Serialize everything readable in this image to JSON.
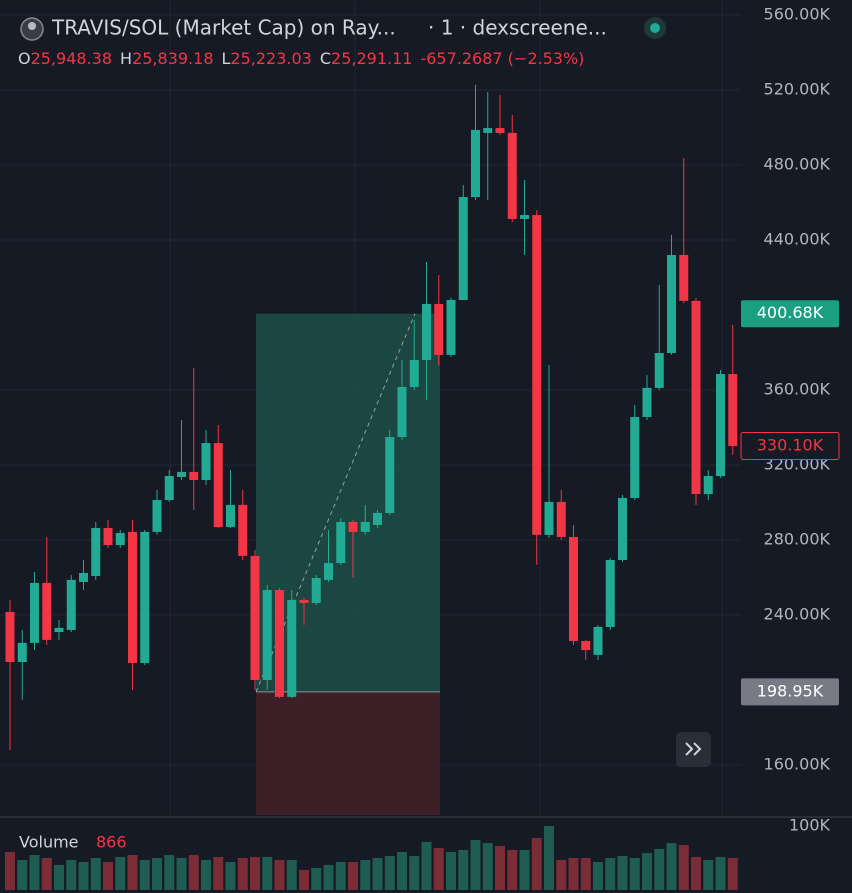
{
  "chart_data": {
    "type": "candlestick",
    "title": "TRAVIS/SOL (Market Cap) on Ray...",
    "subtitle": "· 1 · dexscreene...",
    "ohlc_header": [
      {
        "label": "O",
        "value": "25,948.38"
      },
      {
        "label": "H",
        "value": "25,839.18"
      },
      {
        "label": "L",
        "value": "25,223.03"
      },
      {
        "label": "C",
        "value": "25,291.11"
      }
    ],
    "change": "-657.2687 (−2.53%)",
    "up_color": "#22ab94",
    "down_color": "#f23645",
    "ylim": [
      133.3,
      568
    ],
    "yticks": [
      {
        "value": 160,
        "label": "160.00K"
      },
      {
        "value": 240,
        "label": "240.00K"
      },
      {
        "value": 280,
        "label": "280.00K"
      },
      {
        "value": 320,
        "label": "320.00K"
      },
      {
        "value": 360,
        "label": "360.00K"
      },
      {
        "value": 440,
        "label": "440.00K"
      },
      {
        "value": 480,
        "label": "480.00K"
      },
      {
        "value": 520,
        "label": "520.00K"
      },
      {
        "value": 560,
        "label": "560.00K"
      }
    ],
    "grid": true,
    "open": [
      241.6,
      214.9,
      225.1,
      257.1,
      230.9,
      232,
      257.6,
      260.8,
      286.4,
      277.3,
      284.3,
      214.4,
      284.3,
      301.3,
      313.6,
      316.3,
      312,
      331.7,
      286.9,
      298.7,
      271.5,
      205.3,
      253.3,
      196.3,
      248,
      246.4,
      258.7,
      267.7,
      289.6,
      284.3,
      288,
      294.4,
      334.9,
      361.6,
      376,
      405.9,
      378.7,
      408,
      462.9,
      497.1,
      499.7,
      497.1,
      451.2,
      453.3,
      282.7,
      300.3,
      281.6,
      226.1,
      218.7,
      233.6,
      269.3,
      302.4,
      345.6,
      361.1,
      379.7,
      432,
      407.5,
      304.5,
      314.1,
      368.5
    ],
    "high": [
      248,
      232,
      262.9,
      281.6,
      237.3,
      261.3,
      269.3,
      289.6,
      290.7,
      285.3,
      290.7,
      285.3,
      306.7,
      317.3,
      344,
      371.7,
      338.7,
      341.3,
      317.3,
      306.7,
      274.7,
      256,
      254.4,
      253.3,
      249.1,
      261.3,
      285.3,
      291.7,
      290.7,
      298.7,
      296,
      338.7,
      376,
      397.3,
      428.3,
      421.3,
      409.1,
      469.3,
      522.7,
      518.9,
      517.3,
      506.7,
      472,
      456,
      373.3,
      306.7,
      288,
      226.7,
      234.7,
      270.4,
      304,
      352,
      368,
      416,
      442.7,
      483.7,
      409.1,
      317.3,
      370.7,
      394.7
    ],
    "low": [
      168,
      194.7,
      221.3,
      224,
      226.7,
      230.9,
      253.3,
      258.7,
      275.7,
      275.7,
      200,
      213.3,
      282.7,
      300.3,
      312,
      296,
      309.3,
      286.4,
      286.4,
      269.3,
      200,
      200,
      195.7,
      195.7,
      234.7,
      245.3,
      257.6,
      266.7,
      259.7,
      282.7,
      286.4,
      293.3,
      333.3,
      360,
      354.7,
      373.3,
      377.6,
      409.1,
      461.3,
      461.3,
      496,
      449.6,
      432,
      266.7,
      281.1,
      280,
      224,
      216,
      216,
      232,
      268.3,
      301.3,
      344,
      360,
      378.7,
      406.4,
      298.7,
      301.3,
      313.1,
      325.3
    ],
    "close": [
      214.9,
      225.1,
      257.1,
      226.7,
      233.1,
      258.7,
      262.4,
      286.4,
      277.3,
      283.7,
      214.4,
      284.3,
      301.3,
      314.1,
      316.3,
      312,
      331.7,
      286.9,
      298.7,
      271.5,
      205.3,
      253.3,
      196.3,
      248,
      246.4,
      259.7,
      267.7,
      289.6,
      284.3,
      289.6,
      294.4,
      334.9,
      361.6,
      376,
      405.9,
      378.7,
      408,
      462.9,
      498.7,
      499.7,
      497.1,
      451.2,
      453.3,
      282.7,
      300.3,
      281.6,
      226.1,
      221.3,
      233.6,
      269.3,
      302.4,
      345.6,
      361.1,
      379.7,
      432,
      407.5,
      304.5,
      314.1,
      368.5,
      330.1
    ],
    "last_price": {
      "value": 330.1,
      "label": "330.10K"
    },
    "position": {
      "target": {
        "value": 400.68,
        "label": "400.68K"
      },
      "entry": {
        "value": 198.95,
        "label": "198.95K"
      }
    },
    "volume": {
      "label": "Volume",
      "last": 866,
      "ylim": [
        0,
        100
      ],
      "yticks": [
        {
          "value": 100,
          "label": "100K"
        }
      ],
      "values": [
        59.4,
        46.9,
        54.7,
        50,
        39.1,
        46.9,
        43.8,
        50,
        43.8,
        51.6,
        54.7,
        46.9,
        50,
        54.7,
        50,
        54.7,
        46.9,
        51.6,
        43.8,
        50,
        51.6,
        51.6,
        46.9,
        46.9,
        31.3,
        34.4,
        39.1,
        43.8,
        43.8,
        46.9,
        50,
        53.1,
        59.4,
        53.1,
        75,
        65.6,
        59.4,
        62.5,
        78.1,
        73.4,
        68.8,
        62.5,
        62.5,
        81.3,
        100,
        46.9,
        50,
        50,
        43.8,
        50,
        53.1,
        50,
        57.8,
        64.1,
        73.4,
        70.3,
        51.6,
        46.9,
        51.6,
        50
      ]
    }
  }
}
